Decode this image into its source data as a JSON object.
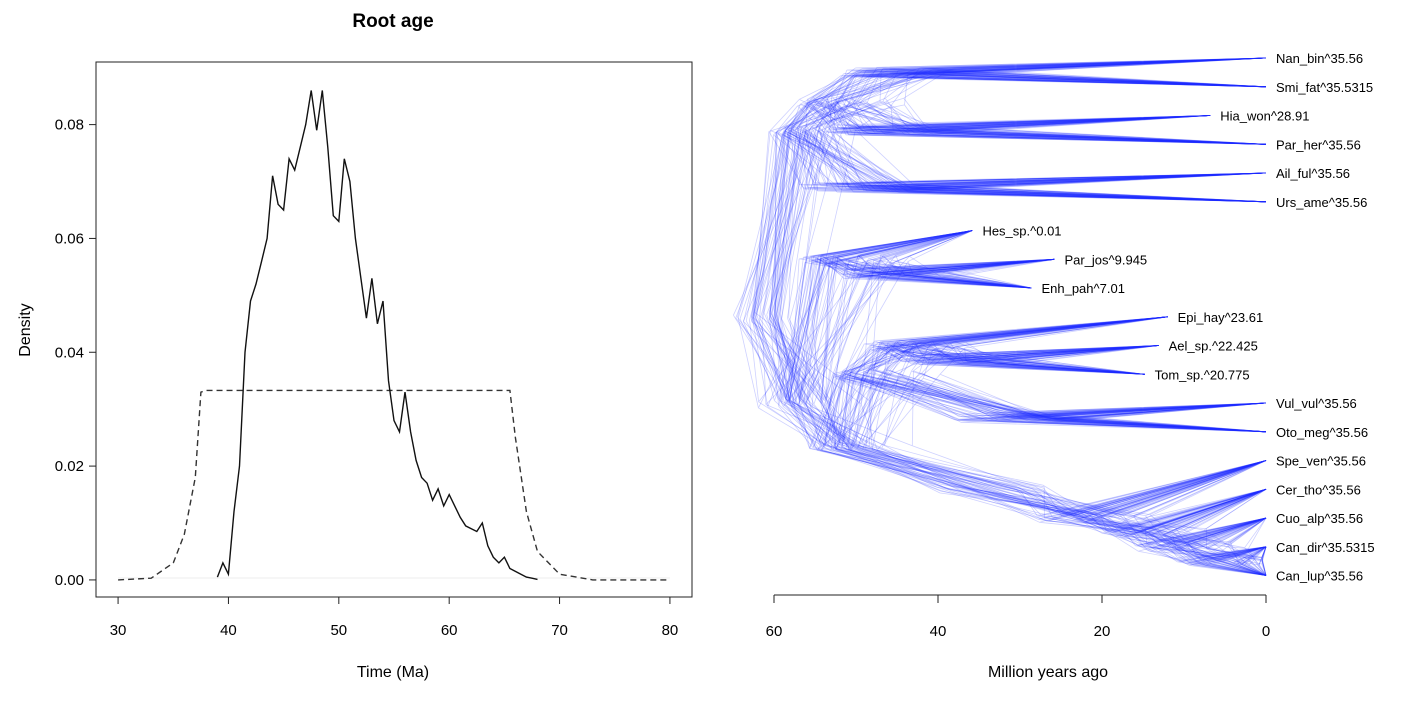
{
  "chart_data": [
    {
      "type": "line",
      "title": "Root age",
      "xlabel": "Time (Ma)",
      "ylabel": "Density",
      "xlim": [
        28,
        82
      ],
      "ylim": [
        -0.003,
        0.091
      ],
      "xticks": [
        30,
        40,
        50,
        60,
        70,
        80
      ],
      "yticks": [
        "0.00",
        "0.02",
        "0.04",
        "0.06",
        "0.08"
      ],
      "ytick_values": [
        0,
        0.02,
        0.04,
        0.06,
        0.08
      ],
      "series": [
        {
          "style": "solid",
          "x": [
            39.0,
            39.5,
            40.0,
            40.5,
            41.0,
            41.5,
            42.0,
            42.5,
            43.0,
            43.5,
            44.0,
            44.5,
            45.0,
            45.5,
            46.0,
            46.5,
            47.0,
            47.5,
            48.0,
            48.5,
            49.0,
            49.5,
            50.0,
            50.5,
            51.0,
            51.5,
            52.0,
            52.5,
            53.0,
            53.5,
            54.0,
            54.5,
            55.0,
            55.5,
            56.0,
            56.5,
            57.0,
            57.5,
            58.0,
            58.5,
            59.0,
            59.5,
            60.0,
            60.5,
            61.0,
            61.5,
            62.0,
            62.5,
            63.0,
            63.5,
            64.0,
            64.5,
            65.0,
            65.5,
            66.0,
            66.5,
            67.0,
            67.5,
            68.0
          ],
          "y": [
            0.0005,
            0.003,
            0.001,
            0.012,
            0.02,
            0.04,
            0.049,
            0.052,
            0.056,
            0.06,
            0.071,
            0.066,
            0.065,
            0.074,
            0.072,
            0.076,
            0.08,
            0.086,
            0.079,
            0.086,
            0.076,
            0.064,
            0.063,
            0.074,
            0.07,
            0.06,
            0.053,
            0.046,
            0.053,
            0.045,
            0.049,
            0.035,
            0.028,
            0.026,
            0.033,
            0.026,
            0.021,
            0.018,
            0.017,
            0.014,
            0.016,
            0.013,
            0.015,
            0.013,
            0.011,
            0.0095,
            0.009,
            0.0085,
            0.01,
            0.006,
            0.004,
            0.003,
            0.004,
            0.002,
            0.0015,
            0.001,
            0.0005,
            0.0003,
            0.0001
          ]
        },
        {
          "style": "dashed",
          "x": [
            30,
            33,
            35,
            36,
            37,
            37.5,
            38,
            50,
            65.5,
            66,
            67,
            68,
            70,
            73,
            80
          ],
          "y": [
            0,
            0.0003,
            0.003,
            0.008,
            0.018,
            0.033,
            0.0333,
            0.0333,
            0.0333,
            0.025,
            0.012,
            0.005,
            0.001,
            0,
            0
          ]
        }
      ]
    },
    {
      "type": "tree",
      "xlabel": "Million years ago",
      "xlim": [
        60,
        0
      ],
      "xticks": [
        60,
        40,
        20,
        0
      ],
      "line_color": "#1f2eff",
      "tips": [
        {
          "label": "Nan_bin^35.56",
          "age": 0
        },
        {
          "label": "Smi_fat^35.5315",
          "age": 0
        },
        {
          "label": "Hia_won^28.91",
          "age": 6.8
        },
        {
          "label": "Par_her^35.56",
          "age": 0
        },
        {
          "label": "Ail_ful^35.56",
          "age": 0
        },
        {
          "label": "Urs_ame^35.56",
          "age": 0
        },
        {
          "label": "Hes_sp.^0.01",
          "age": 35.8
        },
        {
          "label": "Par_jos^9.945",
          "age": 25.8
        },
        {
          "label": "Enh_pah^7.01",
          "age": 28.6
        },
        {
          "label": "Epi_hay^23.61",
          "age": 12.0
        },
        {
          "label": "Ael_sp.^22.425",
          "age": 13.1
        },
        {
          "label": "Tom_sp.^20.775",
          "age": 14.8
        },
        {
          "label": "Vul_vul^35.56",
          "age": 0
        },
        {
          "label": "Oto_meg^35.56",
          "age": 0
        },
        {
          "label": "Spe_ven^35.56",
          "age": 0
        },
        {
          "label": "Cer_tho^35.56",
          "age": 0
        },
        {
          "label": "Cuo_alp^35.56",
          "age": 0
        },
        {
          "label": "Can_dir^35.5315",
          "age": 0
        },
        {
          "label": "Can_lup^35.56",
          "age": 0
        }
      ]
    }
  ]
}
